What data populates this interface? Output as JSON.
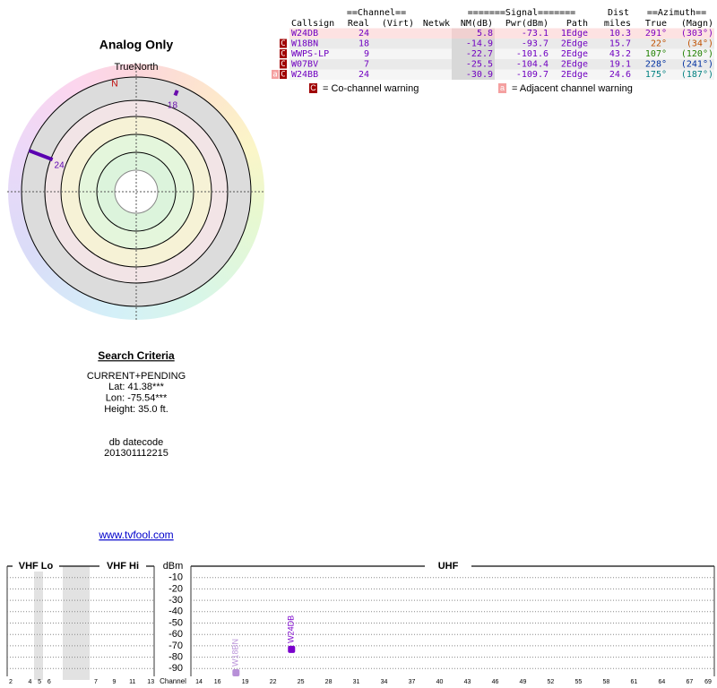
{
  "polar": {
    "title": "Analog Only",
    "north_label": "TrueNorth",
    "n": "N",
    "markers": [
      {
        "label": "18",
        "azimuth": 22,
        "color": "#6a0dad"
      },
      {
        "label": "24",
        "azimuth": 291,
        "color": "#5a00b0"
      }
    ]
  },
  "search": {
    "heading": "Search Criteria",
    "lines": [
      "CURRENT+PENDING",
      "Lat: 41.38***",
      "Lon: -75.54***",
      "Height: 35.0 ft."
    ],
    "datecode_label": "db datecode",
    "datecode": "201301112215"
  },
  "link": "www.tvfool.com",
  "table": {
    "group_headers": [
      "==Channel==",
      "=======Signal=======",
      "Dist",
      "==Azimuth=="
    ],
    "columns": [
      "Callsign",
      "Real",
      "(Virt)",
      "Netwk",
      "NM(dB)",
      "Pwr(dBm)",
      "Path",
      "miles",
      "True",
      "(Magn)"
    ],
    "rows": [
      [
        "W24DB",
        "24",
        "",
        "",
        "5.8",
        "-73.1",
        "1Edge",
        "10.3",
        "291°",
        "(303°)"
      ],
      [
        "W18BN",
        "18",
        "",
        "",
        "-14.9",
        "-93.7",
        "2Edge",
        "15.7",
        "22°",
        "(34°)"
      ],
      [
        "WWPS-LP",
        "9",
        "",
        "",
        "-22.7",
        "-101.6",
        "2Edge",
        "43.2",
        "107°",
        "(120°)"
      ],
      [
        "W07BV",
        "7",
        "",
        "",
        "-25.5",
        "-104.4",
        "2Edge",
        "19.1",
        "228°",
        "(241°)"
      ],
      [
        "W24BB",
        "24",
        "",
        "",
        "-30.9",
        "-109.7",
        "2Edge",
        "24.6",
        "175°",
        "(187°)"
      ]
    ],
    "azimuth_colors": [
      "#8000c0",
      "#c05000",
      "#208000",
      "#0030a0",
      "#008080"
    ],
    "flags": [
      [],
      [
        "C"
      ],
      [
        "C"
      ],
      [
        "C"
      ],
      [
        "a",
        "C"
      ]
    ],
    "legend": {
      "co_icon": "C",
      "co": "= Co-channel warning",
      "adj_icon": "a",
      "adj": "= Adjacent channel warning"
    }
  },
  "chart_data": {
    "type": "spectrum",
    "sections": [
      "VHF Lo",
      "VHF Hi",
      "UHF"
    ],
    "ylabel": "dBm",
    "xlabel": "Channel",
    "ylim": [
      -100,
      0
    ],
    "yticks": [
      -10,
      -20,
      -30,
      -40,
      -50,
      -60,
      -70,
      -80,
      -90
    ],
    "xticks_vhf": [
      2,
      4,
      5,
      6,
      7,
      9,
      11,
      13
    ],
    "xlim": [
      14,
      69
    ],
    "xticks": [
      14,
      16,
      19,
      22,
      25,
      28,
      31,
      34,
      37,
      40,
      43,
      46,
      49,
      52,
      55,
      58,
      61,
      64,
      67,
      69
    ],
    "grid": true,
    "series": [
      {
        "name": "W24DB",
        "color": "#7a00cc",
        "x": [
          24
        ],
        "values": [
          -73.1
        ]
      },
      {
        "name": "W18BN",
        "color": "#b890d8",
        "x": [
          18
        ],
        "values": [
          -93.7
        ]
      }
    ]
  }
}
